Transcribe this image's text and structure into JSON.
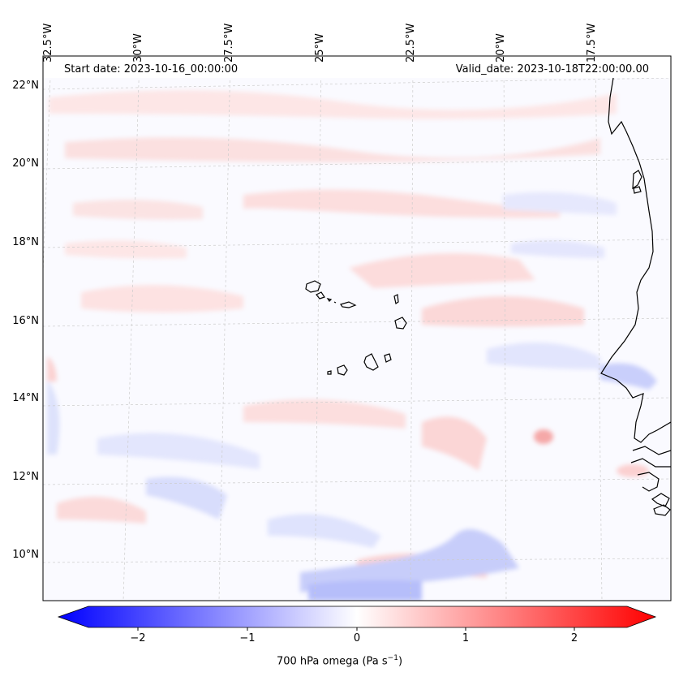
{
  "header": {
    "start_date": "Start date: 2023-10-16_00:00:00",
    "valid_date": "Valid_date: 2023-10-18T22:00:00.00"
  },
  "map": {
    "lon_labels": [
      "32.5°W",
      "30°W",
      "27.5°W",
      "25°W",
      "22.5°W",
      "20°W",
      "17.5°W"
    ],
    "lat_labels": [
      "22°N",
      "20°N",
      "18°N",
      "16°N",
      "14°N",
      "12°N",
      "10°N"
    ],
    "gridlines": "dashed light gray",
    "field": "700 hPa vertical velocity (omega)"
  },
  "colorbar": {
    "title_main": "700 hPa omega (Pa s",
    "title_sup": "−1",
    "title_end": ")",
    "ticks": [
      "−2",
      "−1",
      "0",
      "1",
      "2"
    ],
    "range": [
      -2.6,
      2.6
    ],
    "colormap": "bwr",
    "colors": {
      "low": "#0000ff",
      "mid": "#ffffff",
      "high": "#ff0000"
    }
  }
}
